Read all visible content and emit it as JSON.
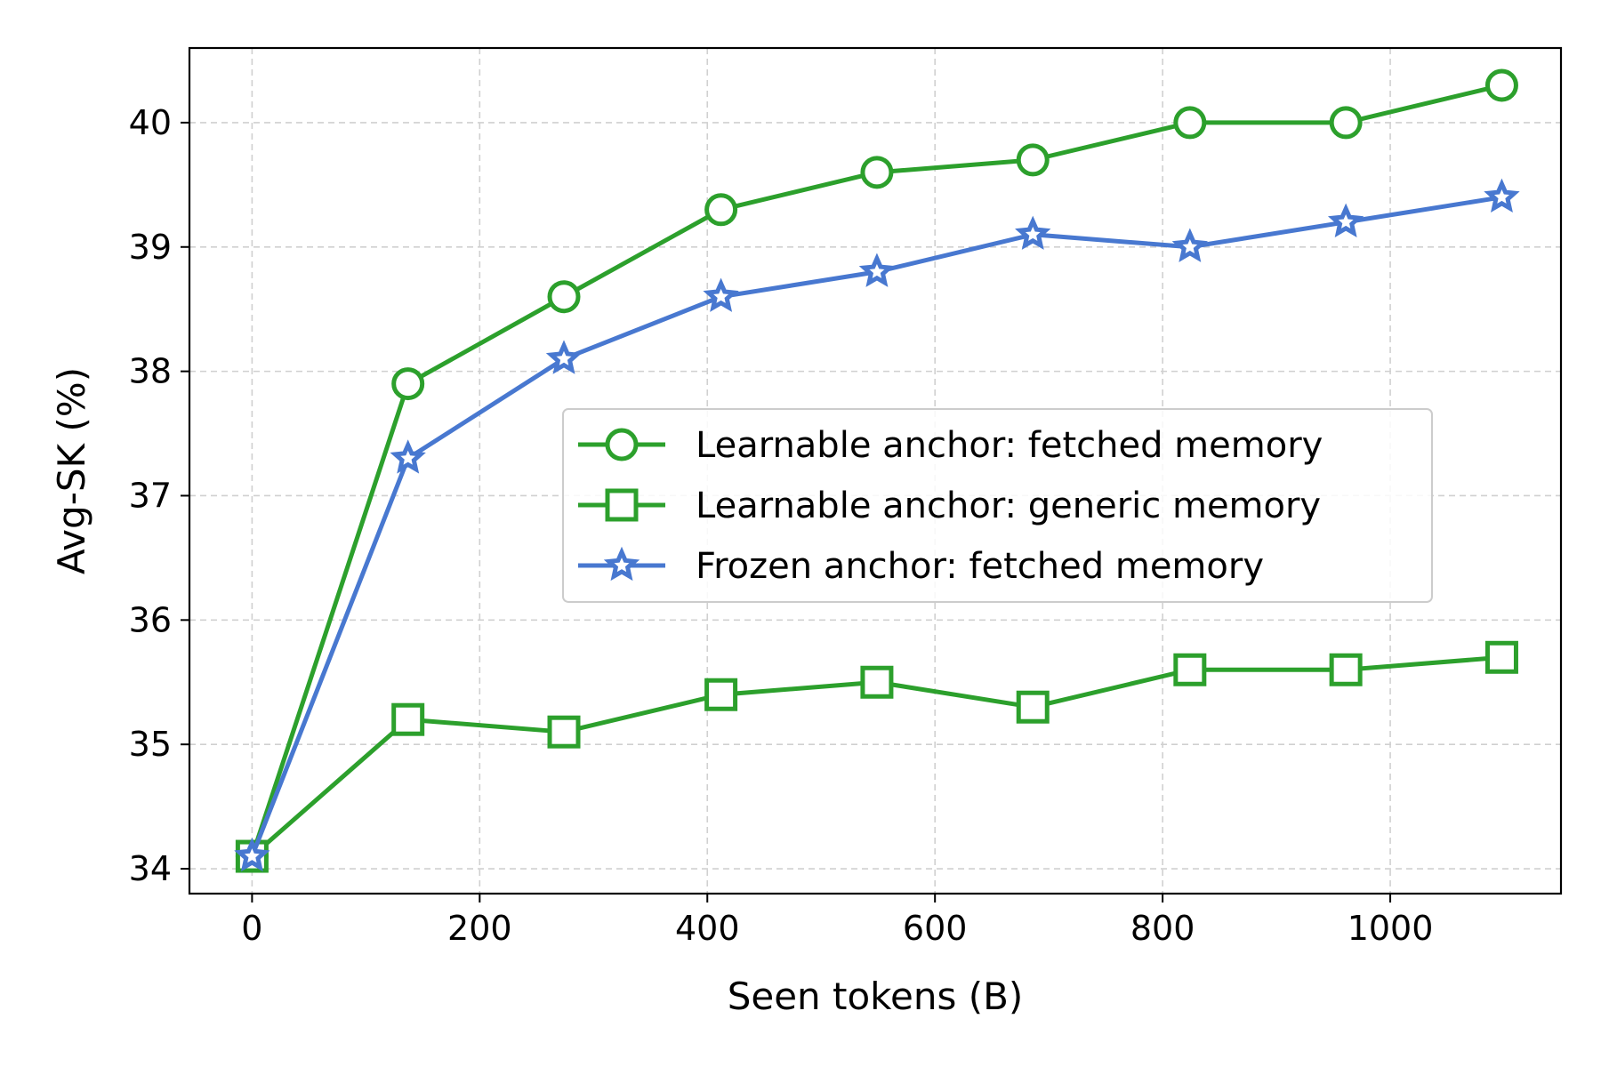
{
  "chart_data": {
    "type": "line",
    "title": "",
    "xlabel": "Seen tokens (B)",
    "ylabel": "Avg-SK (%)",
    "xlim": [
      -55,
      1150
    ],
    "ylim": [
      33.8,
      40.6
    ],
    "xticks": [
      0,
      200,
      400,
      600,
      800,
      1000
    ],
    "yticks": [
      34,
      35,
      36,
      37,
      38,
      39,
      40
    ],
    "grid": true,
    "legend_position": "center-right",
    "x": [
      0,
      137,
      274,
      412,
      549,
      686,
      824,
      961,
      1098
    ],
    "series": [
      {
        "name": "Learnable anchor: fetched memory",
        "color": "#2ca02c",
        "marker": "circle",
        "values": [
          34.1,
          37.9,
          38.6,
          39.3,
          39.6,
          39.7,
          40.0,
          40.0,
          40.3
        ]
      },
      {
        "name": "Learnable anchor: generic memory",
        "color": "#2ca02c",
        "marker": "square",
        "values": [
          34.1,
          35.2,
          35.1,
          35.4,
          35.5,
          35.3,
          35.6,
          35.6,
          35.7
        ]
      },
      {
        "name": "Frozen anchor: fetched memory",
        "color": "#4878d0",
        "marker": "star",
        "values": [
          34.1,
          37.3,
          38.1,
          38.6,
          38.8,
          39.1,
          39.0,
          39.2,
          39.4
        ]
      }
    ]
  }
}
